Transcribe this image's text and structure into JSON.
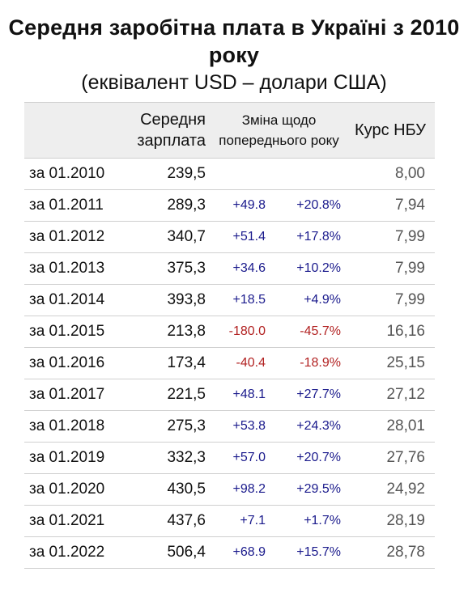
{
  "title": "Середня заробітна плата в Україні з 2010 року",
  "subtitle": "(еквівалент USD – долари США)",
  "header": {
    "salary_line1": "Середня",
    "salary_line2": "зарплата",
    "change_line1": "Зміна щодо",
    "change_line2": "попереднього року",
    "rate": "Курс НБУ"
  },
  "colors": {
    "positive": "#1a1a8c",
    "negative": "#b22222"
  },
  "rows": [
    {
      "date": "за 01.2010",
      "salary": "239,5",
      "abs": "",
      "pct": "",
      "rate": "8,00",
      "sign": ""
    },
    {
      "date": "за 01.2011",
      "salary": "289,3",
      "abs": "+49.8",
      "pct": "+20.8%",
      "rate": "7,94",
      "sign": "pos"
    },
    {
      "date": "за 01.2012",
      "salary": "340,7",
      "abs": "+51.4",
      "pct": "+17.8%",
      "rate": "7,99",
      "sign": "pos"
    },
    {
      "date": "за 01.2013",
      "salary": "375,3",
      "abs": "+34.6",
      "pct": "+10.2%",
      "rate": "7,99",
      "sign": "pos"
    },
    {
      "date": "за 01.2014",
      "salary": "393,8",
      "abs": "+18.5",
      "pct": "+4.9%",
      "rate": "7,99",
      "sign": "pos"
    },
    {
      "date": "за 01.2015",
      "salary": "213,8",
      "abs": "-180.0",
      "pct": "-45.7%",
      "rate": "16,16",
      "sign": "neg"
    },
    {
      "date": "за 01.2016",
      "salary": "173,4",
      "abs": "-40.4",
      "pct": "-18.9%",
      "rate": "25,15",
      "sign": "neg"
    },
    {
      "date": "за 01.2017",
      "salary": "221,5",
      "abs": "+48.1",
      "pct": "+27.7%",
      "rate": "27,12",
      "sign": "pos"
    },
    {
      "date": "за 01.2018",
      "salary": "275,3",
      "abs": "+53.8",
      "pct": "+24.3%",
      "rate": "28,01",
      "sign": "pos"
    },
    {
      "date": "за 01.2019",
      "salary": "332,3",
      "abs": "+57.0",
      "pct": "+20.7%",
      "rate": "27,76",
      "sign": "pos"
    },
    {
      "date": "за 01.2020",
      "salary": "430,5",
      "abs": "+98.2",
      "pct": "+29.5%",
      "rate": "24,92",
      "sign": "pos"
    },
    {
      "date": "за 01.2021",
      "salary": "437,6",
      "abs": "+7.1",
      "pct": "+1.7%",
      "rate": "28,19",
      "sign": "pos"
    },
    {
      "date": "за 01.2022",
      "salary": "506,4",
      "abs": "+68.9",
      "pct": "+15.7%",
      "rate": "28,78",
      "sign": "pos"
    }
  ]
}
